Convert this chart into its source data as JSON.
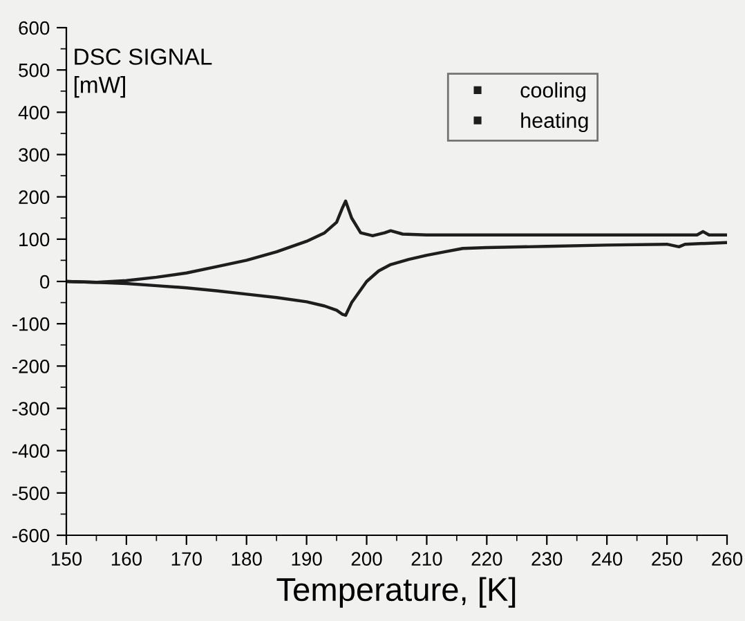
{
  "chart_data": {
    "type": "line",
    "xlabel": "Temperature, [K]",
    "ylabel": "DSC SIGNAL\n[mW]",
    "xlim": [
      150,
      260
    ],
    "xticks": [
      150,
      160,
      170,
      180,
      190,
      200,
      210,
      220,
      230,
      240,
      250,
      260
    ],
    "ylim": [
      -600,
      600
    ],
    "yticks": [
      -600,
      -500,
      -400,
      -300,
      -200,
      -100,
      0,
      100,
      200,
      300,
      400,
      500,
      600
    ],
    "grid": false,
    "legend": "top right",
    "series": [
      {
        "name": "cooling",
        "color": "#1e1e1e",
        "x": [
          150,
          155,
          160,
          165,
          170,
          175,
          180,
          185,
          190,
          193,
          195,
          196,
          196.5,
          197.5,
          199,
          201,
          203,
          204,
          206,
          210,
          220,
          230,
          240,
          250,
          255,
          256,
          257,
          260
        ],
        "values": [
          0,
          -2,
          2,
          10,
          20,
          35,
          50,
          70,
          95,
          115,
          140,
          175,
          190,
          150,
          115,
          108,
          115,
          120,
          112,
          110,
          110,
          110,
          110,
          110,
          110,
          118,
          110,
          110
        ]
      },
      {
        "name": "heating",
        "color": "#1e1e1e",
        "x": [
          150,
          155,
          160,
          165,
          170,
          175,
          180,
          185,
          190,
          193,
          195,
          196,
          196.5,
          197.5,
          199,
          200,
          202,
          204,
          207,
          210,
          213,
          216,
          220,
          230,
          240,
          250,
          252,
          253,
          260
        ],
        "values": [
          0,
          -2,
          -5,
          -10,
          -15,
          -22,
          -30,
          -38,
          -48,
          -58,
          -68,
          -78,
          -80,
          -50,
          -20,
          0,
          25,
          40,
          52,
          62,
          70,
          78,
          80,
          83,
          86,
          88,
          82,
          88,
          92
        ]
      }
    ]
  }
}
